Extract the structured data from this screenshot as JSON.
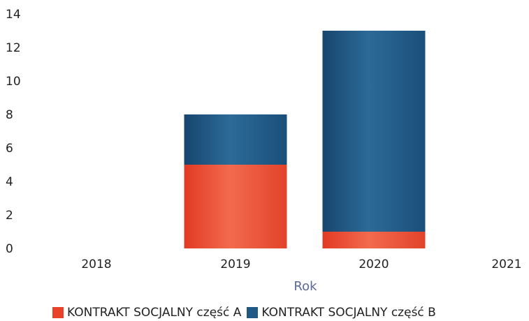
{
  "chart_data": {
    "type": "bar",
    "stacked": true,
    "categories": [
      "2018",
      "2019",
      "2020",
      "2021"
    ],
    "series": [
      {
        "name": "KONTRAKT SOCJALNY część A",
        "values": [
          0,
          5,
          1,
          0
        ],
        "color": "#e8432a"
      },
      {
        "name": "KONTRAKT SOCJALNY część B",
        "values": [
          0,
          3,
          12,
          0
        ],
        "color": "#1f5a86"
      }
    ],
    "xlabel": "Rok",
    "ylabel": "",
    "ylim": [
      0,
      14
    ],
    "yticks": [
      0,
      2,
      4,
      6,
      8,
      10,
      12,
      14
    ],
    "grid": false,
    "legend_position": "bottom"
  }
}
